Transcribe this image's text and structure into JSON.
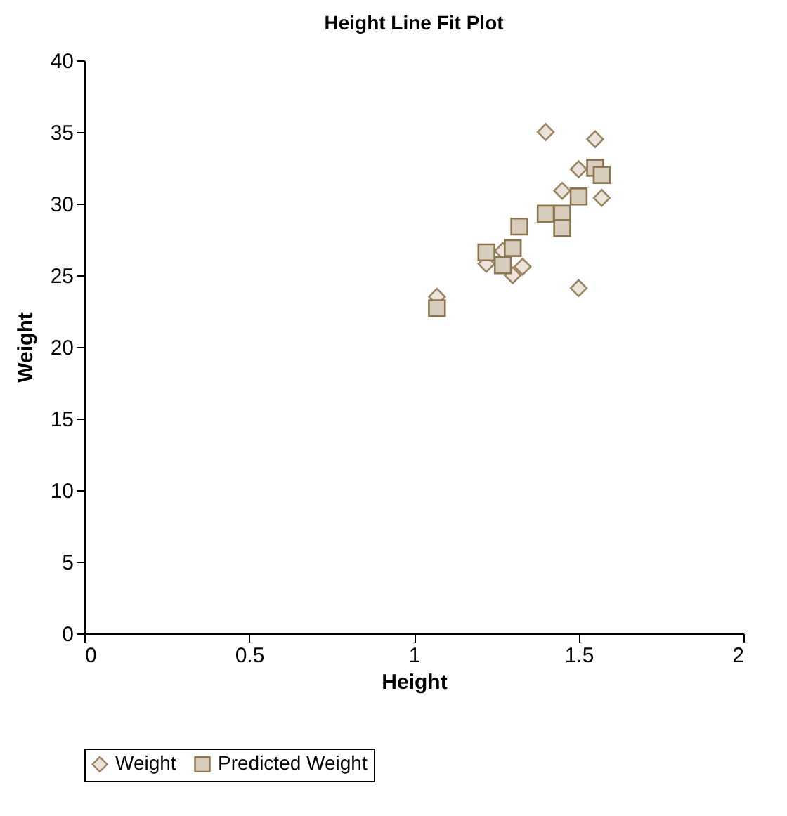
{
  "chart_data": {
    "type": "scatter",
    "title": "Height Line Fit Plot",
    "xlabel": "Height",
    "ylabel": "Weight",
    "xlim": [
      0,
      2
    ],
    "xticks": [
      0,
      0.5,
      1,
      1.5,
      2
    ],
    "ylim": [
      0,
      40
    ],
    "yticks": [
      0,
      5,
      10,
      15,
      20,
      25,
      30,
      35,
      40
    ],
    "grid": false,
    "legend": "bottom",
    "series": [
      {
        "name": "Weight",
        "color": "#ece4dc",
        "marker": "diamond",
        "x": [
          1.4,
          1.55,
          1.5,
          1.45,
          1.57,
          1.5,
          1.33,
          1.3,
          1.22,
          1.27,
          1.07
        ],
        "values": [
          35.0,
          34.5,
          32.4,
          30.9,
          30.4,
          24.1,
          25.6,
          25.0,
          25.8,
          26.7,
          23.5
        ]
      },
      {
        "name": "Predicted Weight",
        "color": "#d8ccbc",
        "marker": "square",
        "x": [
          1.55,
          1.57,
          1.5,
          1.4,
          1.45,
          1.45,
          1.32,
          1.3,
          1.22,
          1.27,
          1.07
        ],
        "values": [
          32.5,
          32.0,
          30.5,
          29.3,
          29.3,
          28.3,
          28.4,
          26.9,
          26.6,
          25.7,
          22.7
        ]
      }
    ]
  }
}
